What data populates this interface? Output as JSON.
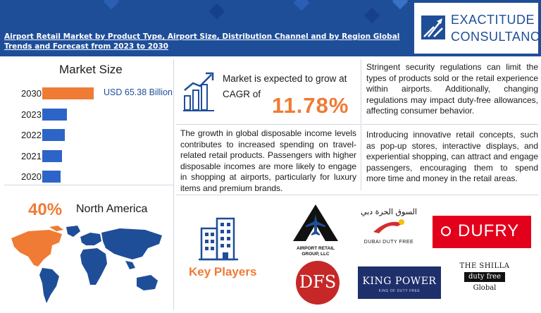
{
  "header": {
    "title": "Airport Retail Market by Product Type, Airport Size, Distribution Channel and by Region Global Trends and Forecast from 2023 to 2030",
    "logo": {
      "line1": "EXACTITUDE",
      "line2": "CONSULTANCY"
    }
  },
  "chart_data": {
    "type": "bar",
    "orientation": "horizontal",
    "title": "Market Size",
    "categories": [
      "2030",
      "2023",
      "2022",
      "2021",
      "2020"
    ],
    "values": [
      65.38,
      31.5,
      29.0,
      25.5,
      23.0
    ],
    "value_labels": [
      "USD 65.38 Billion",
      "",
      "",
      "",
      ""
    ],
    "colors": [
      "#ef7b35",
      "#2d64c8",
      "#2d64c8",
      "#2d64c8",
      "#2d64c8"
    ]
  },
  "cagr": {
    "text": "Market is expected to grow at CAGR of",
    "value": "11.78%"
  },
  "paragraphs": {
    "growth": "The growth in global disposable income levels contributes to increased spending on travel-related retail products. Passengers with higher disposable incomes are more likely to engage in shopping at airports, particularly for luxury items and premium brands.",
    "security": "Stringent security regulations can limit the types of products sold or the retail experience within airports. Additionally, changing regulations may impact duty-free allowances, affecting consumer behavior.",
    "innovation": "Introducing innovative retail concepts, such as pop-up stores, interactive displays, and experiential shopping, can attract and engage passengers, encouraging them to spend more time and money in the retail areas."
  },
  "region": {
    "percent": "40%",
    "name": "North America"
  },
  "key_players": {
    "label": "Key Players",
    "logos": {
      "airport_retail": "AIRPORT RETAIL GROUP, LLC",
      "dubai_arabic": "السوق الحرة دبي",
      "dubai": "DUBAI DUTY FREE",
      "dufry": "DUFRY",
      "dfs": "DFS",
      "king_power": "KING POWER",
      "king_power_sub": "KING OF DUTY FREE",
      "shilla_1": "THE SHILLA",
      "shilla_2": "duty free",
      "shilla_3": "Global"
    }
  },
  "colors": {
    "brand_blue": "#1f4e99",
    "accent_orange": "#ef7b35",
    "bar_blue": "#2d64c8"
  }
}
